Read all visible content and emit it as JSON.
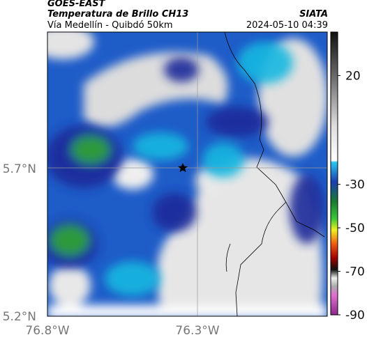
{
  "header": {
    "satellite": "GOES-EAST",
    "product": "Temperatura de Brillo CH13",
    "route": "Vía Medellín - Quibdó 50km",
    "source": "SIATA",
    "timestamp": "2024-05-10 04:39"
  },
  "map": {
    "lat_ticks": [
      "5.7°N",
      "5.2°N"
    ],
    "lon_ticks": [
      "76.8°W",
      "76.3°W"
    ]
  },
  "colorbar": {
    "clim": [
      -90,
      40
    ],
    "ticks": [
      20,
      -30,
      -50,
      -70,
      -90
    ]
  }
}
